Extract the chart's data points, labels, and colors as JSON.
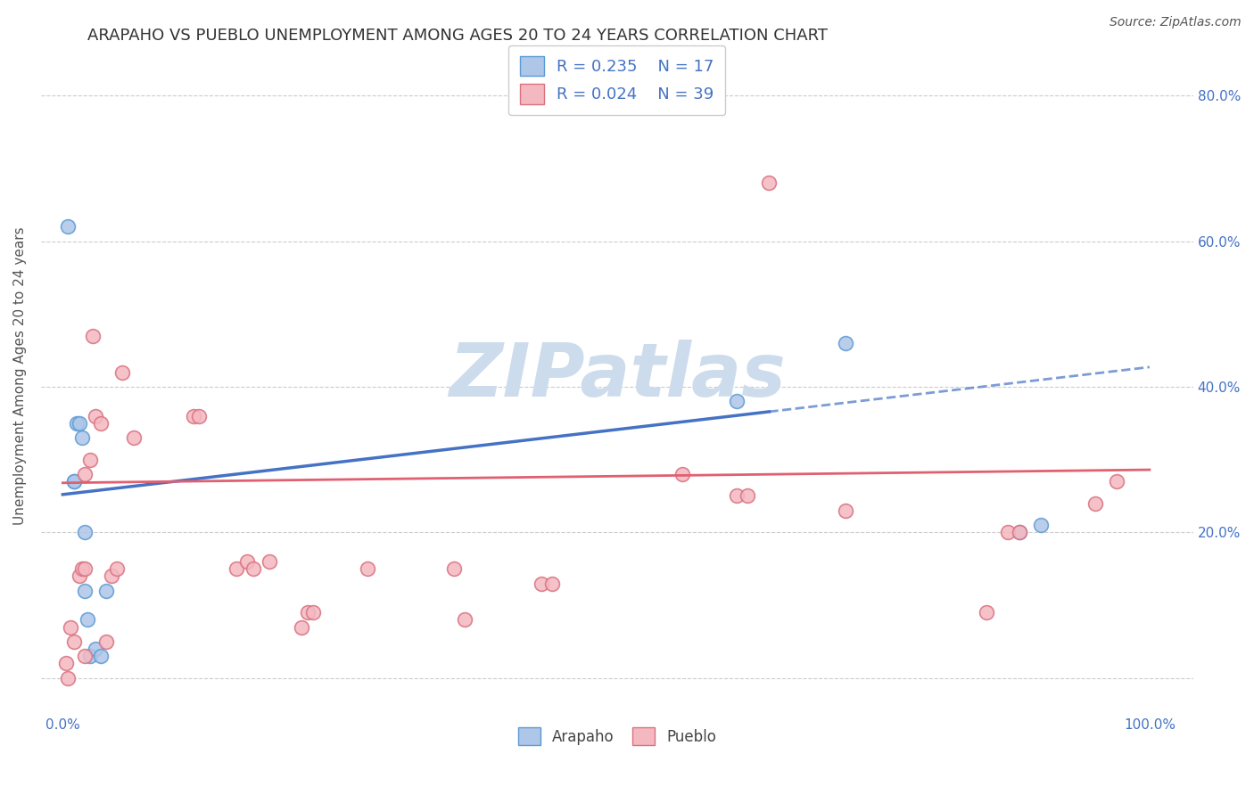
{
  "title": "ARAPAHO VS PUEBLO UNEMPLOYMENT AMONG AGES 20 TO 24 YEARS CORRELATION CHART",
  "source": "Source: ZipAtlas.com",
  "ylabel": "Unemployment Among Ages 20 to 24 years",
  "xlim": [
    -0.02,
    1.04
  ],
  "ylim": [
    -0.05,
    0.88
  ],
  "arapaho_color": "#aec6e8",
  "arapaho_edge_color": "#5b9bd5",
  "pueblo_color": "#f4b8c1",
  "pueblo_edge_color": "#d9717e",
  "arapaho_line_color": "#4472c4",
  "pueblo_line_color": "#e06070",
  "arapaho_x": [
    0.005,
    0.01,
    0.01,
    0.013,
    0.015,
    0.018,
    0.02,
    0.02,
    0.023,
    0.025,
    0.03,
    0.035,
    0.04,
    0.62,
    0.72,
    0.88,
    0.9
  ],
  "arapaho_y": [
    0.62,
    0.27,
    0.27,
    0.35,
    0.35,
    0.33,
    0.12,
    0.2,
    0.08,
    0.03,
    0.04,
    0.03,
    0.12,
    0.38,
    0.46,
    0.2,
    0.21
  ],
  "pueblo_x": [
    0.003,
    0.005,
    0.007,
    0.01,
    0.015,
    0.018,
    0.02,
    0.02,
    0.02,
    0.025,
    0.028,
    0.03,
    0.035,
    0.04,
    0.045,
    0.05,
    0.055,
    0.065,
    0.12,
    0.125,
    0.16,
    0.17,
    0.175,
    0.19,
    0.22,
    0.225,
    0.23,
    0.28,
    0.36,
    0.37,
    0.44,
    0.45,
    0.57,
    0.62,
    0.63,
    0.65,
    0.72,
    0.85,
    0.87,
    0.88,
    0.95,
    0.97
  ],
  "pueblo_y": [
    0.02,
    0.0,
    0.07,
    0.05,
    0.14,
    0.15,
    0.15,
    0.03,
    0.28,
    0.3,
    0.47,
    0.36,
    0.35,
    0.05,
    0.14,
    0.15,
    0.42,
    0.33,
    0.36,
    0.36,
    0.15,
    0.16,
    0.15,
    0.16,
    0.07,
    0.09,
    0.09,
    0.15,
    0.15,
    0.08,
    0.13,
    0.13,
    0.28,
    0.25,
    0.25,
    0.68,
    0.23,
    0.09,
    0.2,
    0.2,
    0.24,
    0.27
  ],
  "marker_size": 130,
  "title_fontsize": 13,
  "axis_label_fontsize": 11,
  "tick_fontsize": 11,
  "legend_fontsize": 13,
  "watermark_text": "ZIPatlas",
  "watermark_color": "#cddcec",
  "watermark_fontsize": 60,
  "arapaho_trend_solid_end": 0.65,
  "grid_color": "#cccccc"
}
